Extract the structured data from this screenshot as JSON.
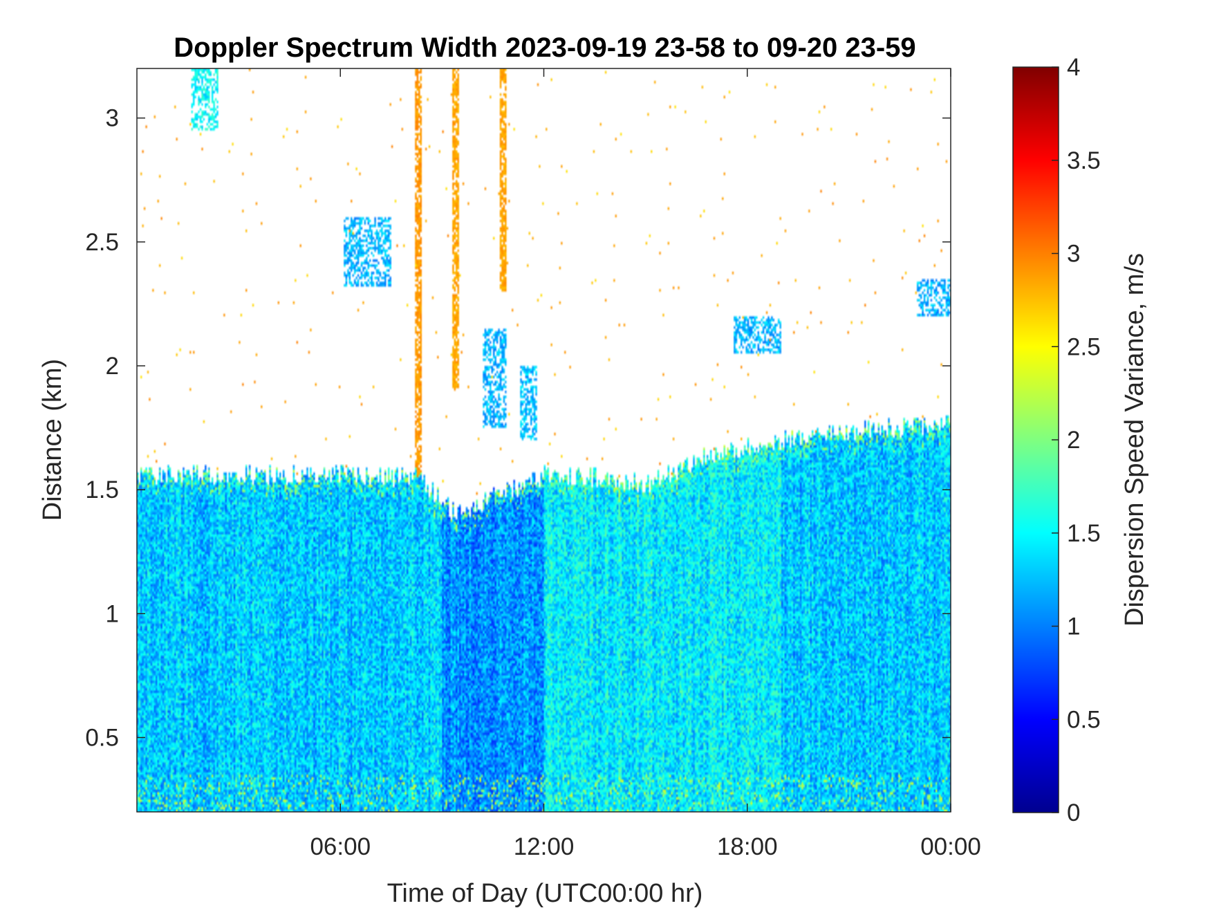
{
  "chart_data": {
    "type": "heatmap",
    "title": "Doppler Spectrum Width 2023-09-19 23-58 to 09-20 23-59",
    "xlabel": "Time of Day (UTC00:00 hr)",
    "ylabel": "Distance (km)",
    "x_range_hours": [
      0,
      24
    ],
    "x_ticks": [
      {
        "hour": 6,
        "label": "06:00"
      },
      {
        "hour": 12,
        "label": "12:00"
      },
      {
        "hour": 18,
        "label": "18:00"
      },
      {
        "hour": 24,
        "label": "00:00"
      }
    ],
    "ylim": [
      0.2,
      3.2
    ],
    "y_ticks": [
      {
        "value": 0.5,
        "label": "0.5"
      },
      {
        "value": 1,
        "label": "1"
      },
      {
        "value": 1.5,
        "label": "1.5"
      },
      {
        "value": 2,
        "label": "2"
      },
      {
        "value": 2.5,
        "label": "2.5"
      },
      {
        "value": 3,
        "label": "3"
      }
    ],
    "colorbar": {
      "label": "Dispersion Speed Variance, m/s",
      "colormap": "jet",
      "range": [
        0,
        4
      ],
      "ticks": [
        {
          "value": 0,
          "label": "0"
        },
        {
          "value": 0.5,
          "label": "0.5"
        },
        {
          "value": 1,
          "label": "1"
        },
        {
          "value": 1.5,
          "label": "1.5"
        },
        {
          "value": 2,
          "label": "2"
        },
        {
          "value": 2.5,
          "label": "2.5"
        },
        {
          "value": 3,
          "label": "3"
        },
        {
          "value": 3.5,
          "label": "3.5"
        },
        {
          "value": 4,
          "label": "4"
        }
      ]
    },
    "signal_top_profile": [
      {
        "hour": 0,
        "top_km": 1.56
      },
      {
        "hour": 6,
        "top_km": 1.56
      },
      {
        "hour": 8.3,
        "top_km": 1.55
      },
      {
        "hour": 9.4,
        "top_km": 1.4
      },
      {
        "hour": 12,
        "top_km": 1.56
      },
      {
        "hour": 14,
        "top_km": 1.55
      },
      {
        "hour": 15,
        "top_km": 1.52
      },
      {
        "hour": 17,
        "top_km": 1.65
      },
      {
        "hour": 20,
        "top_km": 1.73
      },
      {
        "hour": 24,
        "top_km": 1.76
      }
    ],
    "typical_width_by_period": [
      {
        "hours": [
          0,
          9
        ],
        "width_ms": 1.3
      },
      {
        "hours": [
          9,
          12
        ],
        "width_ms": 1.1
      },
      {
        "hours": [
          12,
          19
        ],
        "width_ms": 1.45
      },
      {
        "hours": [
          19,
          24
        ],
        "width_ms": 1.3
      }
    ],
    "high_width_streaks": [
      {
        "hour": 8.3,
        "km": [
          1.5,
          3.2
        ],
        "width_ms": 2.9
      },
      {
        "hour": 9.4,
        "km": [
          1.9,
          3.2
        ],
        "width_ms": 2.85
      },
      {
        "hour": 10.8,
        "km": [
          2.3,
          3.2
        ],
        "width_ms": 2.85
      }
    ],
    "cloud_patches": [
      {
        "hours": [
          1.6,
          2.4
        ],
        "km": [
          2.95,
          3.2
        ],
        "width_ms": 1.5
      },
      {
        "hours": [
          6.1,
          7.5
        ],
        "km": [
          2.32,
          2.6
        ],
        "width_ms": 1.2
      },
      {
        "hours": [
          10.2,
          10.9
        ],
        "km": [
          1.75,
          2.15
        ],
        "width_ms": 1.2
      },
      {
        "hours": [
          11.3,
          11.8
        ],
        "km": [
          1.7,
          2.0
        ],
        "width_ms": 1.25
      },
      {
        "hours": [
          17.6,
          19.0
        ],
        "km": [
          2.05,
          2.2
        ],
        "width_ms": 1.2
      },
      {
        "hours": [
          23.0,
          24.0
        ],
        "km": [
          2.2,
          2.35
        ],
        "width_ms": 1.2
      }
    ]
  }
}
